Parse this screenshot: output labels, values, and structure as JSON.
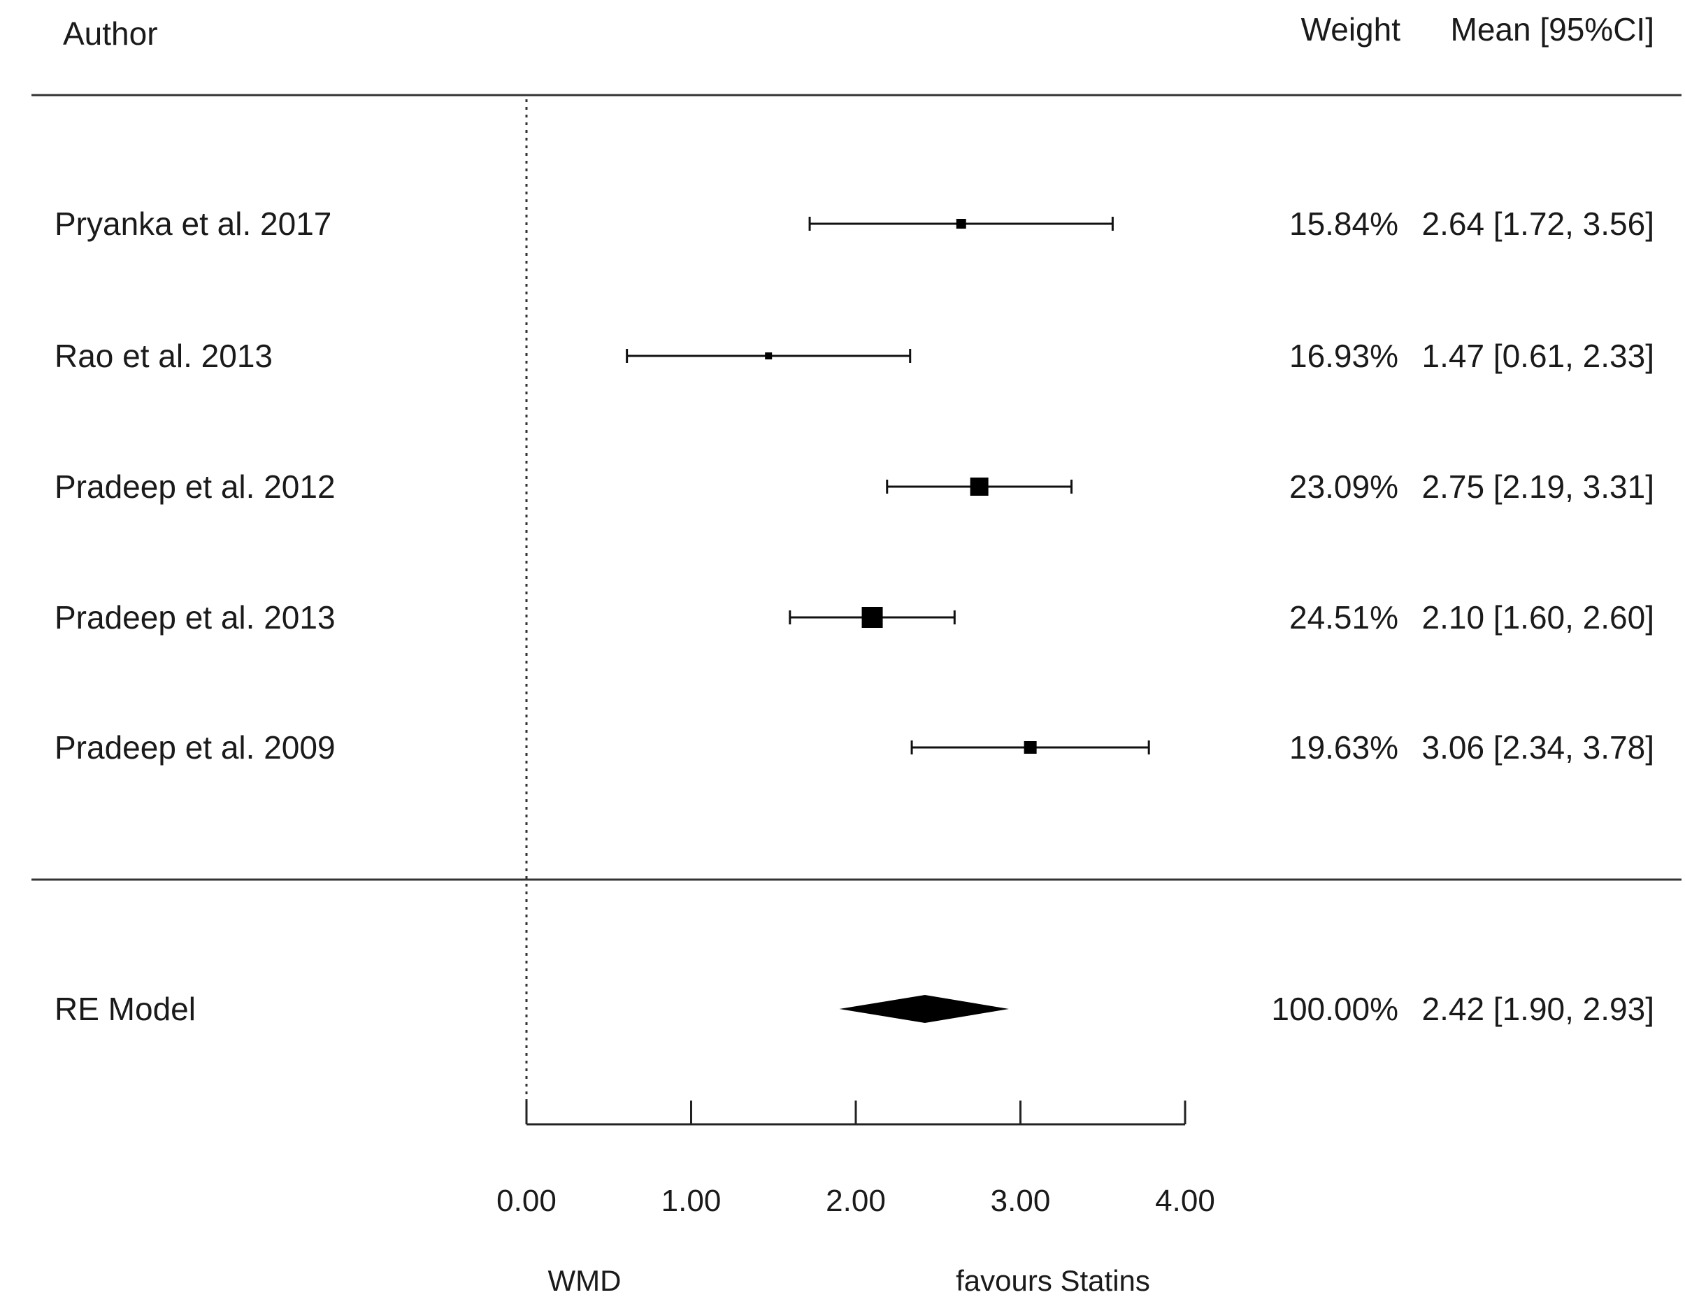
{
  "chart_data": {
    "type": "forest",
    "columns": {
      "study": "Author",
      "weight": "Weight",
      "estimate": "Mean [95%CI]"
    },
    "studies": [
      {
        "label": "Pryanka et al. 2017",
        "mean": 2.64,
        "lower": 1.72,
        "upper": 3.56,
        "weight": 15.84,
        "weight_text": "15.84%",
        "ci_text": "2.64 [1.72, 3.56]"
      },
      {
        "label": "Rao et al. 2013",
        "mean": 1.47,
        "lower": 0.61,
        "upper": 2.33,
        "weight": 16.93,
        "weight_text": "16.93%",
        "ci_text": "1.47 [0.61, 2.33]"
      },
      {
        "label": "Pradeep et al. 2012",
        "mean": 2.75,
        "lower": 2.19,
        "upper": 3.31,
        "weight": 23.09,
        "weight_text": "23.09%",
        "ci_text": "2.75 [2.19, 3.31]"
      },
      {
        "label": "Pradeep et al. 2013",
        "mean": 2.1,
        "lower": 1.6,
        "upper": 2.6,
        "weight": 24.51,
        "weight_text": "24.51%",
        "ci_text": "2.10 [1.60, 2.60]"
      },
      {
        "label": "Pradeep et al. 2009",
        "mean": 3.06,
        "lower": 2.34,
        "upper": 3.78,
        "weight": 19.63,
        "weight_text": "19.63%",
        "ci_text": "3.06 [2.34, 3.78]"
      }
    ],
    "summary": {
      "label": "RE Model",
      "mean": 2.42,
      "lower": 1.9,
      "upper": 2.93,
      "weight_text": "100.00%",
      "ci_text": "2.42 [1.90, 2.93]"
    },
    "x_ticks": [
      0,
      1,
      2,
      3,
      4
    ],
    "x_tick_labels": [
      "0.00",
      "1.00",
      "2.00",
      "3.00",
      "4.00"
    ],
    "xlim": [
      0,
      4
    ],
    "reference_line": 0,
    "xlabel_left": "WMD",
    "xlabel_right": "favours Statins",
    "grid": false
  }
}
